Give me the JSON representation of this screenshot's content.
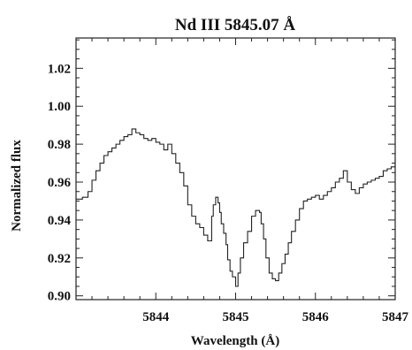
{
  "chart_data": {
    "type": "line",
    "title": "Nd III 5845.07 Å",
    "xlabel": "Wavelength (Å)",
    "ylabel": "Normalized flux",
    "xlim": [
      5843.0,
      5847.0
    ],
    "ylim": [
      0.898,
      1.036
    ],
    "x_ticks": [
      5844,
      5845,
      5846,
      5847
    ],
    "x_tick_labels": [
      "5844",
      "5845",
      "5846",
      "5847"
    ],
    "y_ticks": [
      0.9,
      0.92,
      0.94,
      0.96,
      0.98,
      1.0,
      1.02
    ],
    "y_tick_labels": [
      "0.90",
      "0.92",
      "0.94",
      "0.96",
      "0.98",
      "1.00",
      "1.02"
    ],
    "grid": false,
    "series": [
      {
        "x": [
          5843.0,
          5843.08,
          5843.15,
          5843.2,
          5843.25,
          5843.3,
          5843.35,
          5843.4,
          5843.45,
          5843.5,
          5843.55,
          5843.6,
          5843.65,
          5843.7,
          5843.75,
          5843.8,
          5843.85,
          5843.9,
          5843.95,
          5844.0,
          5844.05,
          5844.1,
          5844.15,
          5844.2,
          5844.25,
          5844.3,
          5844.35,
          5844.4,
          5844.45,
          5844.5,
          5844.55,
          5844.6,
          5844.65,
          5844.7,
          5844.72,
          5844.75,
          5844.78,
          5844.8,
          5844.82,
          5844.85,
          5844.88,
          5844.9,
          5844.93,
          5844.96,
          5845.0,
          5845.03,
          5845.06,
          5845.1,
          5845.15,
          5845.2,
          5845.25,
          5845.3,
          5845.32,
          5845.35,
          5845.38,
          5845.42,
          5845.46,
          5845.5,
          5845.54,
          5845.58,
          5845.62,
          5845.66,
          5845.7,
          5845.75,
          5845.8,
          5845.85,
          5845.9,
          5845.95,
          5846.0,
          5846.05,
          5846.1,
          5846.15,
          5846.2,
          5846.25,
          5846.3,
          5846.35,
          5846.4,
          5846.45,
          5846.5,
          5846.55,
          5846.6,
          5846.65,
          5846.7,
          5846.75,
          5846.8,
          5846.85,
          5846.9,
          5846.95,
          5847.0
        ],
        "y": [
          0.951,
          0.952,
          0.955,
          0.961,
          0.966,
          0.97,
          0.974,
          0.976,
          0.978,
          0.98,
          0.982,
          0.984,
          0.985,
          0.988,
          0.986,
          0.985,
          0.983,
          0.982,
          0.983,
          0.981,
          0.98,
          0.977,
          0.98,
          0.975,
          0.97,
          0.965,
          0.958,
          0.948,
          0.942,
          0.938,
          0.936,
          0.932,
          0.929,
          0.942,
          0.948,
          0.952,
          0.949,
          0.944,
          0.938,
          0.933,
          0.927,
          0.919,
          0.913,
          0.91,
          0.905,
          0.912,
          0.92,
          0.928,
          0.934,
          0.942,
          0.945,
          0.944,
          0.938,
          0.93,
          0.92,
          0.912,
          0.909,
          0.908,
          0.912,
          0.917,
          0.922,
          0.928,
          0.934,
          0.94,
          0.946,
          0.95,
          0.951,
          0.952,
          0.953,
          0.951,
          0.953,
          0.955,
          0.957,
          0.96,
          0.962,
          0.966,
          0.96,
          0.956,
          0.954,
          0.957,
          0.959,
          0.96,
          0.961,
          0.962,
          0.963,
          0.966,
          0.967,
          0.968,
          0.972
        ]
      }
    ]
  }
}
